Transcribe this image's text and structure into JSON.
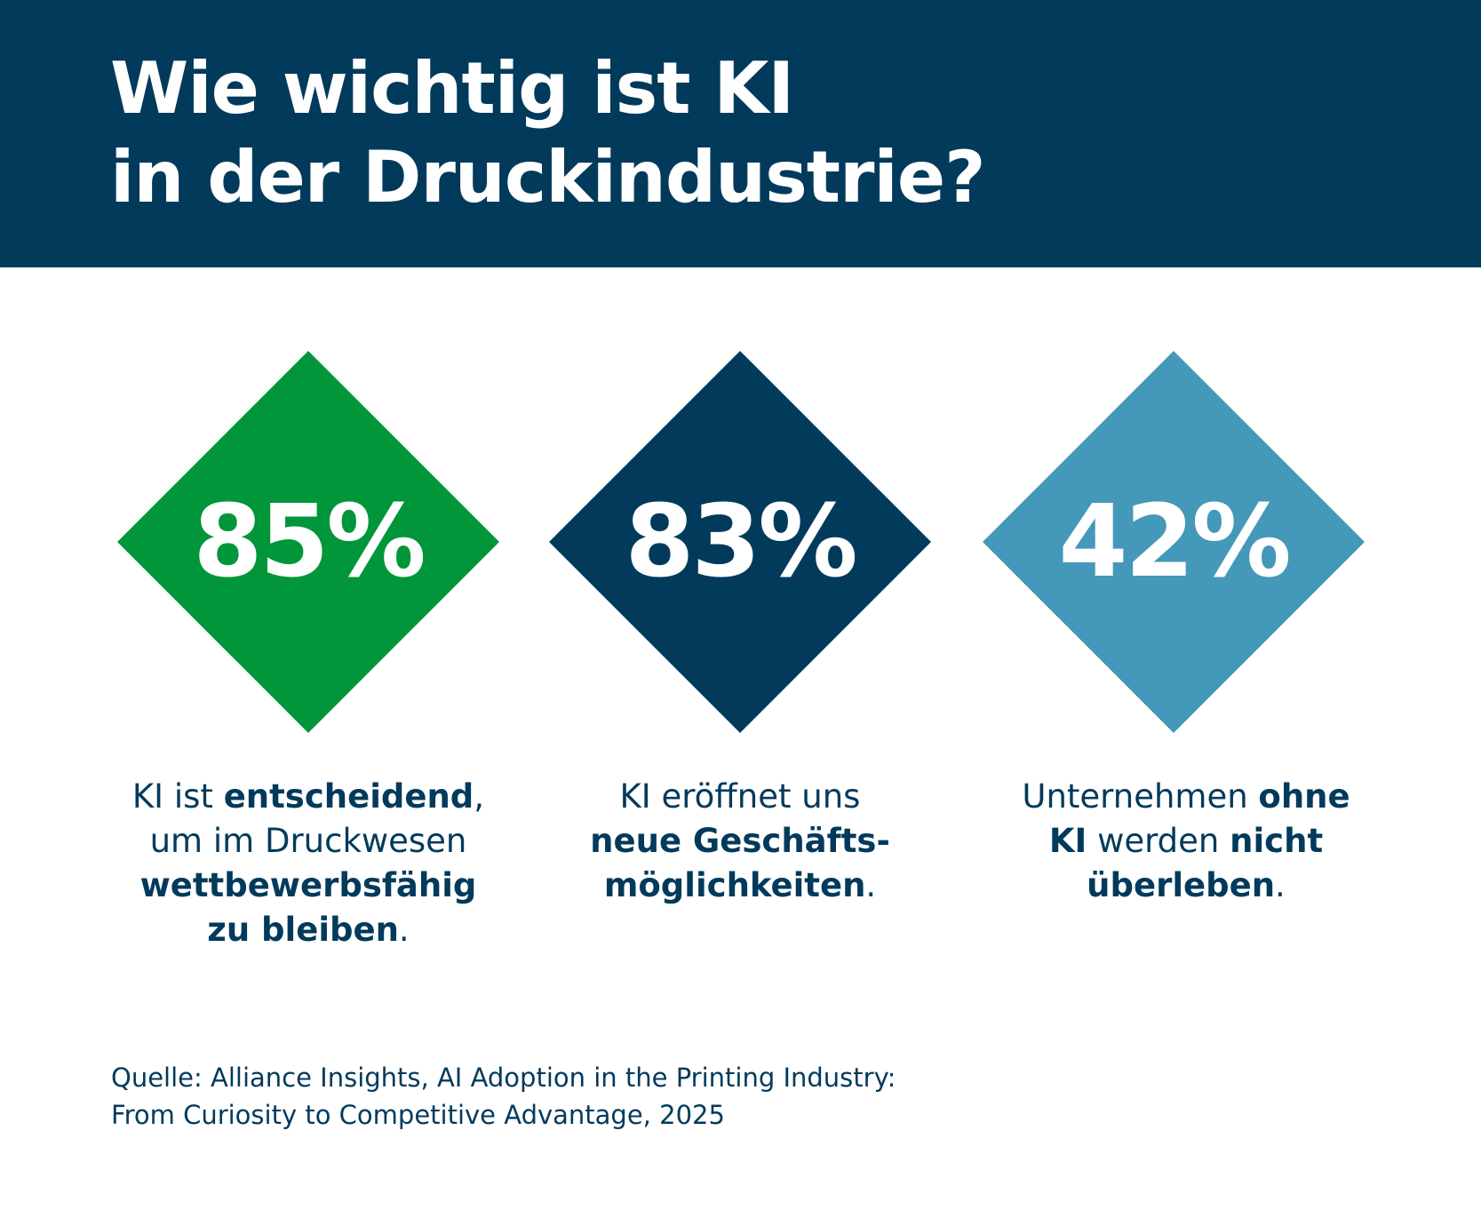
{
  "header": {
    "title_line1": "Wie wichtig ist KI",
    "title_line2": "in der Druckindustrie?"
  },
  "colors": {
    "header_bg": "#023a5c",
    "stat1": "#009639",
    "stat2": "#023a5c",
    "stat3": "#4498b9",
    "text": "#023a5c"
  },
  "stats": [
    {
      "value": "85%",
      "text": [
        "KI ist ",
        "entscheidend",
        ",",
        "um im Druckwesen",
        "wettbewerbsfähig",
        "zu bleiben",
        "."
      ]
    },
    {
      "value": "83%",
      "text": [
        "KI eröffnet uns",
        "neue Geschäfts-",
        "möglichkeiten",
        "."
      ]
    },
    {
      "value": "42%",
      "text": [
        "Unternehmen ",
        "ohne",
        "KI",
        " werden ",
        "nicht",
        "überleben",
        "."
      ]
    }
  ],
  "source": {
    "line1": "Quelle: Alliance Insights, AI Adoption in the Printing Industry:",
    "line2": "From Curiosity to Competitive Advantage, 2025"
  }
}
